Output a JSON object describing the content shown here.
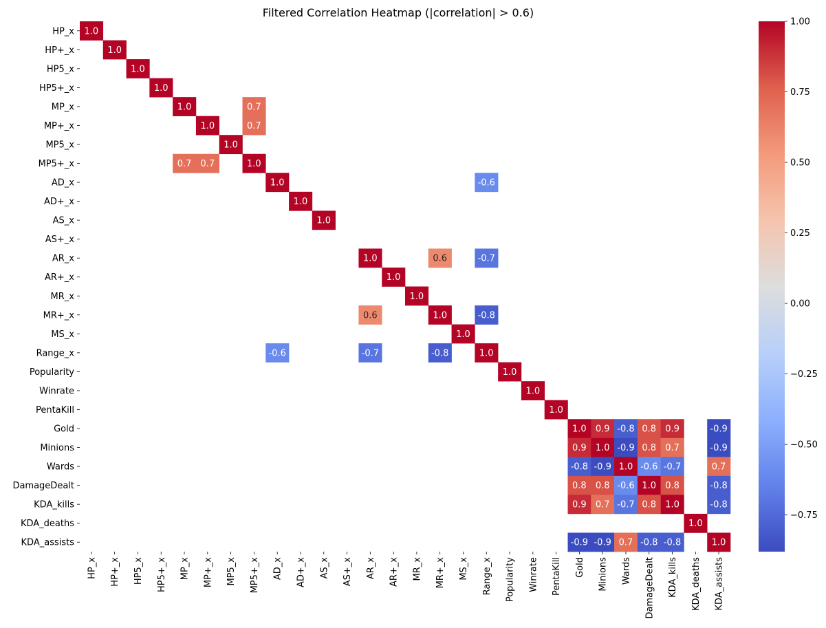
{
  "chart_data": {
    "type": "heatmap",
    "title": "Filtered Correlation Heatmap (|correlation| > 0.6)",
    "row_labels": [
      "HP_x",
      "HP+_x",
      "HP5_x",
      "HP5+_x",
      "MP_x",
      "MP+_x",
      "MP5_x",
      "MP5+_x",
      "AD_x",
      "AD+_x",
      "AS_x",
      "AS+_x",
      "AR_x",
      "AR+_x",
      "MR_x",
      "MR+_x",
      "MS_x",
      "Range_x",
      "Popularity",
      "Winrate",
      "PentaKill",
      "Gold",
      "Minions",
      "Wards",
      "DamageDealt",
      "KDA_kills",
      "KDA_deaths",
      "KDA_assists"
    ],
    "col_labels": [
      "HP_x",
      "HP+_x",
      "HP5_x",
      "HP5+_x",
      "MP_x",
      "MP+_x",
      "MP5_x",
      "MP5+_x",
      "AD_x",
      "AD+_x",
      "AS_x",
      "AS+_x",
      "AR_x",
      "AR+_x",
      "MR_x",
      "MR+_x",
      "MS_x",
      "Range_x",
      "Popularity",
      "Winrate",
      "PentaKill",
      "Gold",
      "Minions",
      "Wards",
      "DamageDealt",
      "KDA_kills",
      "KDA_deaths",
      "KDA_assists"
    ],
    "cells": [
      {
        "row": "HP_x",
        "col": "HP_x",
        "value": 1.0
      },
      {
        "row": "HP+_x",
        "col": "HP+_x",
        "value": 1.0
      },
      {
        "row": "HP5_x",
        "col": "HP5_x",
        "value": 1.0
      },
      {
        "row": "HP5+_x",
        "col": "HP5+_x",
        "value": 1.0
      },
      {
        "row": "MP_x",
        "col": "MP_x",
        "value": 1.0
      },
      {
        "row": "MP_x",
        "col": "MP5+_x",
        "value": 0.7
      },
      {
        "row": "MP+_x",
        "col": "MP+_x",
        "value": 1.0
      },
      {
        "row": "MP+_x",
        "col": "MP5+_x",
        "value": 0.7
      },
      {
        "row": "MP5_x",
        "col": "MP5_x",
        "value": 1.0
      },
      {
        "row": "MP5+_x",
        "col": "MP_x",
        "value": 0.7
      },
      {
        "row": "MP5+_x",
        "col": "MP+_x",
        "value": 0.7
      },
      {
        "row": "MP5+_x",
        "col": "MP5+_x",
        "value": 1.0
      },
      {
        "row": "AD_x",
        "col": "AD_x",
        "value": 1.0
      },
      {
        "row": "AD_x",
        "col": "Range_x",
        "value": -0.6
      },
      {
        "row": "AD+_x",
        "col": "AD+_x",
        "value": 1.0
      },
      {
        "row": "AS_x",
        "col": "AS_x",
        "value": 1.0
      },
      {
        "row": "AR_x",
        "col": "AR_x",
        "value": 1.0
      },
      {
        "row": "AR_x",
        "col": "MR+_x",
        "value": 0.6
      },
      {
        "row": "AR_x",
        "col": "Range_x",
        "value": -0.7
      },
      {
        "row": "AR+_x",
        "col": "AR+_x",
        "value": 1.0
      },
      {
        "row": "MR_x",
        "col": "MR_x",
        "value": 1.0
      },
      {
        "row": "MR+_x",
        "col": "AR_x",
        "value": 0.6
      },
      {
        "row": "MR+_x",
        "col": "MR+_x",
        "value": 1.0
      },
      {
        "row": "MR+_x",
        "col": "Range_x",
        "value": -0.8
      },
      {
        "row": "MS_x",
        "col": "MS_x",
        "value": 1.0
      },
      {
        "row": "Range_x",
        "col": "AD_x",
        "value": -0.6
      },
      {
        "row": "Range_x",
        "col": "AR_x",
        "value": -0.7
      },
      {
        "row": "Range_x",
        "col": "MR+_x",
        "value": -0.8
      },
      {
        "row": "Range_x",
        "col": "Range_x",
        "value": 1.0
      },
      {
        "row": "Popularity",
        "col": "Popularity",
        "value": 1.0
      },
      {
        "row": "Winrate",
        "col": "Winrate",
        "value": 1.0
      },
      {
        "row": "PentaKill",
        "col": "PentaKill",
        "value": 1.0
      },
      {
        "row": "Gold",
        "col": "Gold",
        "value": 1.0
      },
      {
        "row": "Gold",
        "col": "Minions",
        "value": 0.9
      },
      {
        "row": "Gold",
        "col": "Wards",
        "value": -0.8
      },
      {
        "row": "Gold",
        "col": "DamageDealt",
        "value": 0.8
      },
      {
        "row": "Gold",
        "col": "KDA_kills",
        "value": 0.9
      },
      {
        "row": "Gold",
        "col": "KDA_assists",
        "value": -0.9
      },
      {
        "row": "Minions",
        "col": "Gold",
        "value": 0.9
      },
      {
        "row": "Minions",
        "col": "Minions",
        "value": 1.0
      },
      {
        "row": "Minions",
        "col": "Wards",
        "value": -0.9
      },
      {
        "row": "Minions",
        "col": "DamageDealt",
        "value": 0.8
      },
      {
        "row": "Minions",
        "col": "KDA_kills",
        "value": 0.7
      },
      {
        "row": "Minions",
        "col": "KDA_assists",
        "value": -0.9
      },
      {
        "row": "Wards",
        "col": "Gold",
        "value": -0.8
      },
      {
        "row": "Wards",
        "col": "Minions",
        "value": -0.9
      },
      {
        "row": "Wards",
        "col": "Wards",
        "value": 1.0
      },
      {
        "row": "Wards",
        "col": "DamageDealt",
        "value": -0.6
      },
      {
        "row": "Wards",
        "col": "KDA_kills",
        "value": -0.7
      },
      {
        "row": "Wards",
        "col": "KDA_assists",
        "value": 0.7
      },
      {
        "row": "DamageDealt",
        "col": "Gold",
        "value": 0.8
      },
      {
        "row": "DamageDealt",
        "col": "Minions",
        "value": 0.8
      },
      {
        "row": "DamageDealt",
        "col": "Wards",
        "value": -0.6
      },
      {
        "row": "DamageDealt",
        "col": "DamageDealt",
        "value": 1.0
      },
      {
        "row": "DamageDealt",
        "col": "KDA_kills",
        "value": 0.8
      },
      {
        "row": "DamageDealt",
        "col": "KDA_assists",
        "value": -0.8
      },
      {
        "row": "KDA_kills",
        "col": "Gold",
        "value": 0.9
      },
      {
        "row": "KDA_kills",
        "col": "Minions",
        "value": 0.7
      },
      {
        "row": "KDA_kills",
        "col": "Wards",
        "value": -0.7
      },
      {
        "row": "KDA_kills",
        "col": "DamageDealt",
        "value": 0.8
      },
      {
        "row": "KDA_kills",
        "col": "KDA_kills",
        "value": 1.0
      },
      {
        "row": "KDA_kills",
        "col": "KDA_assists",
        "value": -0.8
      },
      {
        "row": "KDA_deaths",
        "col": "KDA_deaths",
        "value": 1.0
      },
      {
        "row": "KDA_assists",
        "col": "Gold",
        "value": -0.9
      },
      {
        "row": "KDA_assists",
        "col": "Minions",
        "value": -0.9
      },
      {
        "row": "KDA_assists",
        "col": "Wards",
        "value": 0.7
      },
      {
        "row": "KDA_assists",
        "col": "DamageDealt",
        "value": -0.8
      },
      {
        "row": "KDA_assists",
        "col": "KDA_kills",
        "value": -0.8
      },
      {
        "row": "KDA_assists",
        "col": "KDA_assists",
        "value": 1.0
      }
    ],
    "colorbar": {
      "colormap": "coolwarm",
      "range": [
        -0.88,
        1.0
      ],
      "ticks": [
        1.0,
        0.75,
        0.5,
        0.25,
        0.0,
        -0.25,
        -0.5,
        -0.75
      ],
      "tick_labels": [
        "1.00",
        "0.75",
        "0.50",
        "0.25",
        "0.00",
        "−0.25",
        "−0.50",
        "−0.75"
      ]
    },
    "grid": false,
    "missing_cells": "blank"
  }
}
